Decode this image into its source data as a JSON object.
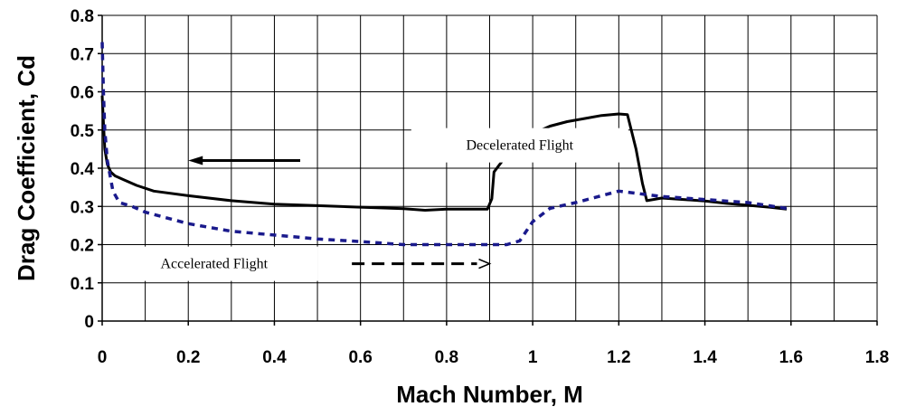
{
  "chart_data": {
    "type": "line",
    "title": "",
    "xlabel": "Mach Number, M",
    "ylabel": "Drag Coefficient, Cd",
    "xlim": [
      0,
      1.8
    ],
    "ylim": [
      0,
      0.8
    ],
    "x_ticks": [
      "0",
      "0.2",
      "0.4",
      "0.6",
      "0.8",
      "1",
      "1.2",
      "1.4",
      "1.6",
      "1.8"
    ],
    "y_ticks": [
      "0",
      "0.1",
      "0.2",
      "0.3",
      "0.4",
      "0.5",
      "0.6",
      "0.7",
      "0.8"
    ],
    "grid": true,
    "legend": "none",
    "series": [
      {
        "name": "Decelerated Flight",
        "color": "#000000",
        "style": "solid",
        "points": [
          [
            0.0,
            0.59
          ],
          [
            0.003,
            0.52
          ],
          [
            0.006,
            0.45
          ],
          [
            0.012,
            0.41
          ],
          [
            0.02,
            0.39
          ],
          [
            0.03,
            0.38
          ],
          [
            0.05,
            0.37
          ],
          [
            0.08,
            0.355
          ],
          [
            0.12,
            0.34
          ],
          [
            0.2,
            0.328
          ],
          [
            0.3,
            0.315
          ],
          [
            0.4,
            0.306
          ],
          [
            0.5,
            0.302
          ],
          [
            0.6,
            0.298
          ],
          [
            0.7,
            0.294
          ],
          [
            0.75,
            0.29
          ],
          [
            0.8,
            0.293
          ],
          [
            0.85,
            0.293
          ],
          [
            0.895,
            0.293
          ],
          [
            0.905,
            0.32
          ],
          [
            0.91,
            0.39
          ],
          [
            0.93,
            0.42
          ],
          [
            0.96,
            0.44
          ],
          [
            1.0,
            0.49
          ],
          [
            1.04,
            0.51
          ],
          [
            1.08,
            0.522
          ],
          [
            1.12,
            0.53
          ],
          [
            1.16,
            0.538
          ],
          [
            1.2,
            0.542
          ],
          [
            1.22,
            0.54
          ],
          [
            1.24,
            0.45
          ],
          [
            1.255,
            0.36
          ],
          [
            1.265,
            0.315
          ],
          [
            1.3,
            0.322
          ],
          [
            1.35,
            0.318
          ],
          [
            1.4,
            0.314
          ],
          [
            1.45,
            0.308
          ],
          [
            1.5,
            0.303
          ],
          [
            1.55,
            0.298
          ],
          [
            1.59,
            0.293
          ]
        ]
      },
      {
        "name": "Accelerated Flight",
        "color": "#1a1a8c",
        "style": "dashed",
        "points": [
          [
            0.0,
            0.73
          ],
          [
            0.003,
            0.6
          ],
          [
            0.006,
            0.5
          ],
          [
            0.012,
            0.42
          ],
          [
            0.025,
            0.34
          ],
          [
            0.04,
            0.31
          ],
          [
            0.07,
            0.3
          ],
          [
            0.1,
            0.285
          ],
          [
            0.2,
            0.255
          ],
          [
            0.3,
            0.235
          ],
          [
            0.4,
            0.225
          ],
          [
            0.5,
            0.215
          ],
          [
            0.6,
            0.208
          ],
          [
            0.7,
            0.2
          ],
          [
            0.8,
            0.2
          ],
          [
            0.9,
            0.2
          ],
          [
            0.94,
            0.2
          ],
          [
            0.97,
            0.21
          ],
          [
            1.0,
            0.26
          ],
          [
            1.04,
            0.295
          ],
          [
            1.1,
            0.31
          ],
          [
            1.15,
            0.325
          ],
          [
            1.2,
            0.34
          ],
          [
            1.25,
            0.333
          ],
          [
            1.3,
            0.326
          ],
          [
            1.4,
            0.318
          ],
          [
            1.5,
            0.31
          ],
          [
            1.59,
            0.295
          ]
        ]
      }
    ],
    "annotations": [
      {
        "text": "Decelerated Flight",
        "arrow_style": "solid",
        "arrow_from": [
          0.46,
          0.42
        ],
        "arrow_to": [
          0.2,
          0.42
        ],
        "text_x": 0.97,
        "text_y": 0.46
      },
      {
        "text": "Accelerated Flight",
        "arrow_style": "dashed",
        "arrow_from": [
          0.58,
          0.15
        ],
        "arrow_to": [
          0.9,
          0.15
        ],
        "text_x": 0.26,
        "text_y": 0.15
      }
    ]
  }
}
